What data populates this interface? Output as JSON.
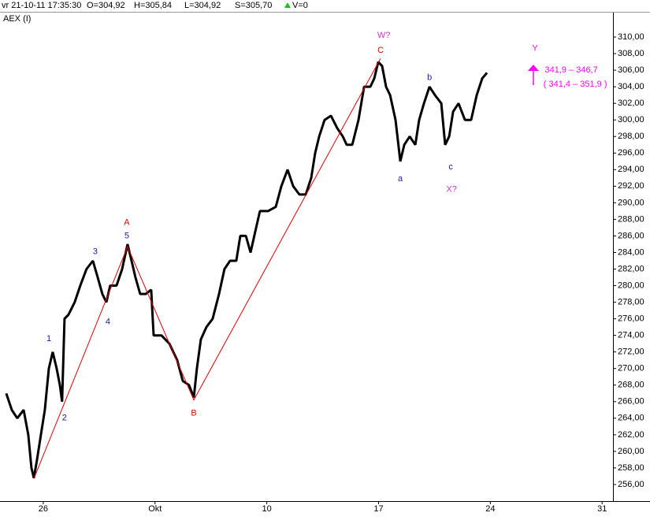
{
  "header": {
    "datetime": "vr 21-10-11 17:35:30",
    "open": "O=304,92",
    "high": "H=305,84",
    "low": "L=304,92",
    "close": "S=305,70",
    "volume": "V=0"
  },
  "chart_data": {
    "type": "line",
    "title": "AEX (I)",
    "color": "#000000",
    "x": [
      -2.32,
      -1.97,
      -1.63,
      -1.23,
      -0.94,
      -0.74,
      -0.59,
      -0.39,
      -0.15,
      0.1,
      0.35,
      0.59,
      0.84,
      1.04,
      1.18,
      1.33,
      1.58,
      1.97,
      2.32,
      2.71,
      3.11,
      3.41,
      3.7,
      3.95,
      4.19,
      4.59,
      4.94,
      5.28,
      5.53,
      5.77,
      6.07,
      6.42,
      6.76,
      6.91,
      7.4,
      7.9,
      8.39,
      8.74,
      9.13,
      9.43,
      9.62,
      9.87,
      10.22,
      10.61,
      11.01,
      11.35,
      11.7,
      12.09,
      12.34,
      12.69,
      12.98,
      13.33,
      13.57,
      14.07,
      14.56,
      14.91,
      15.3,
      15.65,
      16.04,
      16.44,
      16.78,
      17.03,
      17.28,
      17.62,
      18.02,
      18.41,
      18.76,
      19.0,
      19.35,
      19.74,
      20.09,
      20.48,
      20.73,
      20.98,
      21.22,
      21.47,
      21.72,
      22.06,
      22.36,
      22.61,
      22.95,
      23.3,
      23.54,
      23.84,
      24.19,
      24.53,
      24.93,
      25.17,
      25.42,
      25.67,
      26.01,
      26.41,
      26.8,
      27.15,
      27.49,
      27.79
    ],
    "values": [
      267,
      265,
      264,
      265,
      262,
      258,
      256.8,
      259,
      262,
      265,
      270,
      272,
      270,
      268,
      266,
      276,
      276.5,
      278,
      280,
      282,
      283,
      281,
      279,
      278,
      280,
      280,
      282,
      285,
      283,
      281,
      279,
      279,
      279.5,
      274,
      274,
      273,
      271,
      268.5,
      268,
      266.5,
      270,
      273.5,
      275,
      276,
      279,
      282,
      283,
      283,
      286,
      286,
      284,
      287,
      289,
      289,
      289.5,
      292,
      294,
      292,
      291,
      291,
      293,
      296,
      298,
      300,
      300.5,
      299,
      298,
      297,
      297,
      300,
      304,
      304,
      305,
      307,
      306.5,
      304,
      303,
      300,
      295,
      297,
      298,
      297,
      300,
      302,
      304,
      303,
      302,
      297,
      298,
      301,
      302,
      300,
      300,
      303,
      305,
      305.7
    ],
    "xlim": [
      -2.71,
      35.68
    ],
    "ylim": [
      254,
      312.76
    ],
    "xticks": [
      {
        "value": 0,
        "label": "26"
      },
      {
        "value": 7,
        "label": "Okt"
      },
      {
        "value": 14,
        "label": "10"
      },
      {
        "value": 21,
        "label": "17"
      },
      {
        "value": 28,
        "label": "24"
      },
      {
        "value": 35,
        "label": "31"
      }
    ],
    "yticks": [
      {
        "value": 256,
        "label": "256,00"
      },
      {
        "value": 258,
        "label": "258,00"
      },
      {
        "value": 260,
        "label": "260,00"
      },
      {
        "value": 262,
        "label": "262,00"
      },
      {
        "value": 264,
        "label": "264,00"
      },
      {
        "value": 266,
        "label": "266,00"
      },
      {
        "value": 268,
        "label": "268,00"
      },
      {
        "value": 270,
        "label": "270,00"
      },
      {
        "value": 272,
        "label": "272,00"
      },
      {
        "value": 274,
        "label": "274,00"
      },
      {
        "value": 276,
        "label": "276,00"
      },
      {
        "value": 278,
        "label": "278,00"
      },
      {
        "value": 280,
        "label": "280,00"
      },
      {
        "value": 282,
        "label": "282,00"
      },
      {
        "value": 284,
        "label": "284,00"
      },
      {
        "value": 286,
        "label": "286,00"
      },
      {
        "value": 288,
        "label": "288,00"
      },
      {
        "value": 290,
        "label": "290,00"
      },
      {
        "value": 292,
        "label": "292,00"
      },
      {
        "value": 294,
        "label": "294,00"
      },
      {
        "value": 296,
        "label": "296,00"
      },
      {
        "value": 298,
        "label": "298,00"
      },
      {
        "value": 300,
        "label": "300,00"
      },
      {
        "value": 302,
        "label": "302,00"
      },
      {
        "value": 304,
        "label": "304,00"
      },
      {
        "value": 306,
        "label": "306,00"
      },
      {
        "value": 308,
        "label": "308,00"
      },
      {
        "value": 310,
        "label": "310,00"
      }
    ],
    "wave": {
      "color": "#e00000",
      "x": [
        -0.59,
        5.28,
        9.43,
        21.12
      ],
      "values": [
        256.7,
        284.7,
        266.2,
        307.4
      ]
    },
    "annotations": [
      {
        "text": "1",
        "x": 0.35,
        "y": 273.6,
        "color": "#1a1aa0"
      },
      {
        "text": "2",
        "x": 1.33,
        "y": 264.0,
        "color": "#1a1aa0"
      },
      {
        "text": "3",
        "x": 3.26,
        "y": 284.1,
        "color": "#1a1aa0"
      },
      {
        "text": "4",
        "x": 4.05,
        "y": 275.6,
        "color": "#1a1aa0"
      },
      {
        "text": "5",
        "x": 5.23,
        "y": 286.0,
        "color": "#1a1aa0"
      },
      {
        "text": "A",
        "x": 5.23,
        "y": 287.6,
        "color": "#e00000"
      },
      {
        "text": "B",
        "x": 9.43,
        "y": 264.6,
        "color": "#e00000"
      },
      {
        "text": "C",
        "x": 21.13,
        "y": 308.4,
        "color": "#e00000"
      },
      {
        "text": "W?",
        "x": 21.33,
        "y": 310.2,
        "color": "#cc33cc"
      },
      {
        "text": "a",
        "x": 22.36,
        "y": 292.9,
        "color": "#1a1aa0"
      },
      {
        "text": "b",
        "x": 24.19,
        "y": 305.1,
        "color": "#1a1aa0"
      },
      {
        "text": "c",
        "x": 25.52,
        "y": 294.3,
        "color": "#1a1aa0"
      },
      {
        "text": "X?",
        "x": 25.57,
        "y": 291.6,
        "color": "#cc33cc"
      },
      {
        "text": "Y",
        "x": 30.8,
        "y": 308.6,
        "color": "#ff00ff"
      },
      {
        "text": "341,9 – 346,7",
        "x": 33.07,
        "y": 306.0,
        "color": "#ff00ff"
      },
      {
        "text": "( 341,4 – 351,9 )",
        "x": 33.32,
        "y": 304.3,
        "color": "#ff00ff"
      }
    ]
  }
}
